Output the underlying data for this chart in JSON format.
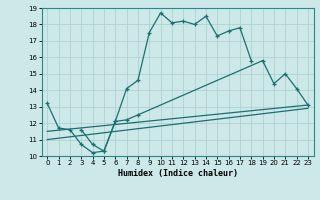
{
  "xlabel": "Humidex (Indice chaleur)",
  "xlim": [
    -0.5,
    23.5
  ],
  "ylim": [
    10,
    19
  ],
  "yticks": [
    10,
    11,
    12,
    13,
    14,
    15,
    16,
    17,
    18,
    19
  ],
  "xticks": [
    0,
    1,
    2,
    3,
    4,
    5,
    6,
    7,
    8,
    9,
    10,
    11,
    12,
    13,
    14,
    15,
    16,
    17,
    18,
    19,
    20,
    21,
    22,
    23
  ],
  "bg_color": "#cce8e8",
  "line_color": "#1a7070",
  "grid_color": "#aacece",
  "line1_x": [
    0,
    1,
    2,
    3,
    4,
    5,
    6,
    7,
    8,
    9,
    10,
    11,
    12,
    13,
    14,
    15,
    16,
    17,
    18
  ],
  "line1_y": [
    13.2,
    11.7,
    11.6,
    10.7,
    10.2,
    10.3,
    12.1,
    14.1,
    14.6,
    17.5,
    18.7,
    18.1,
    18.2,
    18.0,
    18.5,
    17.3,
    17.6,
    17.8,
    15.8
  ],
  "line2_x": [
    0,
    23
  ],
  "line2_y": [
    11.0,
    12.9
  ],
  "line3_x": [
    0,
    23
  ],
  "line3_y": [
    11.5,
    13.1
  ],
  "line4_x": [
    3,
    4,
    5,
    6,
    7,
    8,
    19,
    20,
    21,
    22,
    23
  ],
  "line4_y": [
    11.6,
    10.7,
    10.3,
    12.1,
    12.2,
    12.5,
    15.8,
    14.4,
    15.0,
    14.1,
    13.1
  ]
}
